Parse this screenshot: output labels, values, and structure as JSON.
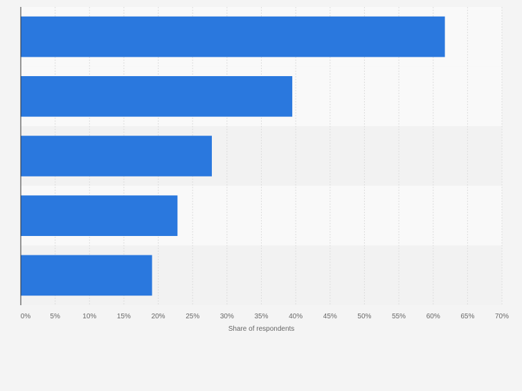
{
  "chart_data": {
    "type": "bar",
    "orientation": "horizontal",
    "categories": [
      "",
      "",
      "",
      "",
      ""
    ],
    "values": [
      61.7,
      39.5,
      27.8,
      22.8,
      19.1
    ],
    "xlabel": "Share of respondents",
    "ylabel": "",
    "xlim": [
      0,
      70
    ],
    "x_ticks": [
      "0%",
      "5%",
      "10%",
      "15%",
      "20%",
      "25%",
      "30%",
      "35%",
      "40%",
      "45%",
      "50%",
      "55%",
      "60%",
      "65%",
      "70%"
    ],
    "grid": true,
    "legend": "none",
    "colors": {
      "bar": "#2a78de",
      "grid": "#dddddd",
      "band_light": "#f9f9f9",
      "band_dark": "#f2f2f2",
      "axis": "#333333",
      "tick_text": "#666666"
    }
  }
}
